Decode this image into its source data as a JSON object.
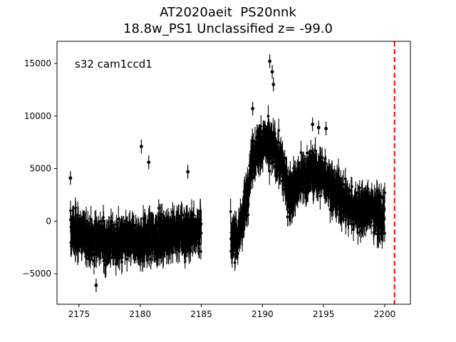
{
  "title_line1": "AT2020aeit  PS20nnk",
  "title_line2": "18.8w_PS1 Unclassified z= -99.0",
  "annotation": "s32 cam1ccd1",
  "chart_data": {
    "type": "scatter",
    "title": "AT2020aeit  PS20nnk\n18.8w_PS1 Unclassified z= -99.0",
    "xlabel": "",
    "ylabel": "",
    "xlim": [
      2173.2,
      2202.1
    ],
    "ylim": [
      -7900,
      17100
    ],
    "xticks": [
      2175,
      2180,
      2185,
      2190,
      2195,
      2200
    ],
    "yticks": [
      -5000,
      0,
      5000,
      10000,
      15000
    ],
    "xtick_labels": [
      "2175",
      "2180",
      "2185",
      "2190",
      "2195",
      "2200"
    ],
    "ytick_labels": [
      "−5000",
      "0",
      "5000",
      "10000",
      "15000"
    ],
    "grid": false,
    "marker_color": "#000000",
    "errorbars": true,
    "vline": {
      "x": 2200.8,
      "color": "#ff0000",
      "style": "dashed"
    },
    "trend_segments": [
      {
        "x": [
          2174.3,
          2176.0,
          2178.0,
          2180.0,
          2182.0,
          2184.0,
          2185.0
        ],
        "y": [
          -800,
          -1700,
          -2000,
          -1800,
          -1300,
          -1000,
          -700
        ]
      },
      {
        "x": [
          2187.4,
          2188.0,
          2188.6,
          2189.2,
          2189.8,
          2190.3,
          2190.9,
          2191.5,
          2192.2,
          2193.0,
          2194.0,
          2195.0,
          2196.0,
          2197.0,
          2198.0,
          2199.0,
          2200.0
        ],
        "y": [
          -2200,
          -1500,
          1500,
          6200,
          7200,
          7400,
          6800,
          5600,
          2600,
          3800,
          4800,
          4300,
          2800,
          1500,
          1000,
          1200,
          300
        ]
      }
    ],
    "outliers": [
      {
        "x": 2174.3,
        "y": 4100
      },
      {
        "x": 2180.1,
        "y": 7100
      },
      {
        "x": 2180.7,
        "y": 5600
      },
      {
        "x": 2183.9,
        "y": 4700
      },
      {
        "x": 2176.4,
        "y": -6100
      },
      {
        "x": 2190.6,
        "y": 15200
      },
      {
        "x": 2190.8,
        "y": 14200
      },
      {
        "x": 2190.9,
        "y": 13000
      },
      {
        "x": 2189.2,
        "y": 10700
      },
      {
        "x": 2194.1,
        "y": 9200
      },
      {
        "x": 2194.6,
        "y": 8900
      },
      {
        "x": 2195.2,
        "y": 8800
      }
    ]
  }
}
